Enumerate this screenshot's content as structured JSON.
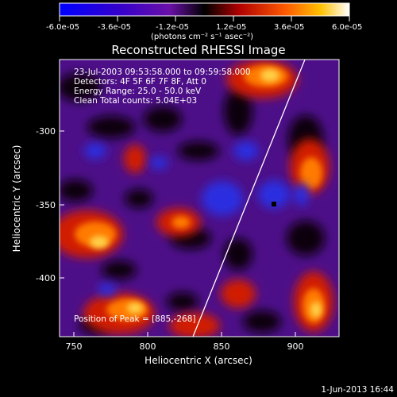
{
  "colorbar": {
    "tick_labels": [
      "-6.0e-05",
      "-3.6e-05",
      "-1.2e-05",
      "1.2e-05",
      "3.6e-05",
      "6.0e-05"
    ],
    "units": "(photons cm⁻² s⁻¹ asec⁻²)",
    "range": [
      -6e-05,
      6e-05
    ]
  },
  "plot": {
    "title": "Reconstructed RHESSI Image",
    "annotations": [
      "23-Jul-2003 09:53:58.000 to 09:59:58.000",
      "Detectors: 4F 5F 6F 7F 8F, Att 0",
      "Energy Range: 25.0 - 50.0 keV",
      "Clean    Total counts: 5.04E+03"
    ],
    "peak_label": "Position of Peak = [885,-268]",
    "peak": [
      885,
      -268
    ],
    "x_axis": {
      "label": "Heliocentric X (arcsec)",
      "range": [
        740,
        930
      ],
      "ticks": [
        "750",
        "800",
        "850",
        "900"
      ]
    },
    "y_axis": {
      "label": "Heliocentric Y (arcsec)",
      "range": [
        -443,
        -256
      ],
      "ticks": [
        "-300",
        "-350",
        "-400"
      ]
    }
  },
  "footer": {
    "date": "1-Jun-2013 16:44"
  }
}
